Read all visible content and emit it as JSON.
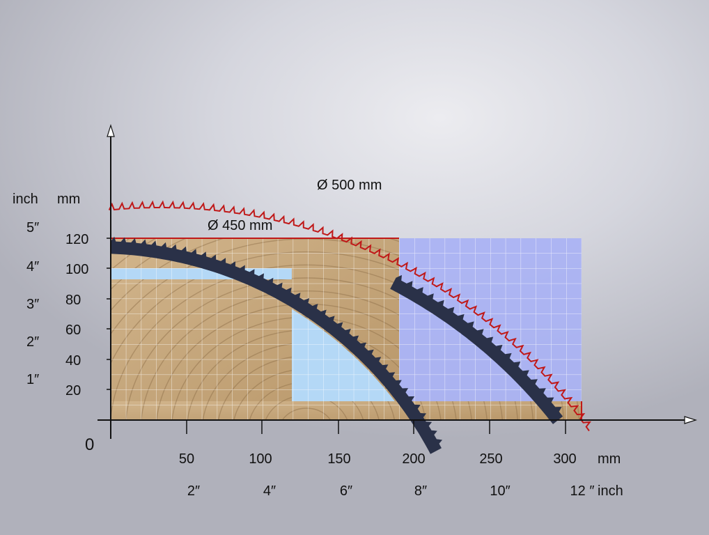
{
  "units": {
    "left_inch": "inch",
    "left_mm": "mm",
    "bottom_mm": "mm",
    "bottom_inch": "inch"
  },
  "origin_label": "0",
  "y_mm_ticks": [
    "20",
    "40",
    "60",
    "80",
    "100",
    "120"
  ],
  "y_inch_ticks": [
    "1″",
    "2″",
    "3″",
    "4″",
    "5″"
  ],
  "x_mm_ticks": [
    "50",
    "100",
    "150",
    "200",
    "250",
    "300"
  ],
  "x_inch_ticks": [
    "2″",
    "4″",
    "6″",
    "8″",
    "10″",
    "12 ″"
  ],
  "blades": [
    {
      "label": "Ø 500 mm",
      "color": "#c01818"
    },
    {
      "label": "Ø 450 mm",
      "color": "#1d2438"
    }
  ],
  "colors": {
    "wood": "#c9ac82",
    "light_blue_zone": "#b4d8f6",
    "blue_zone": "#a9b2f4",
    "grid": "#ffffff",
    "axis": "#111111"
  }
}
